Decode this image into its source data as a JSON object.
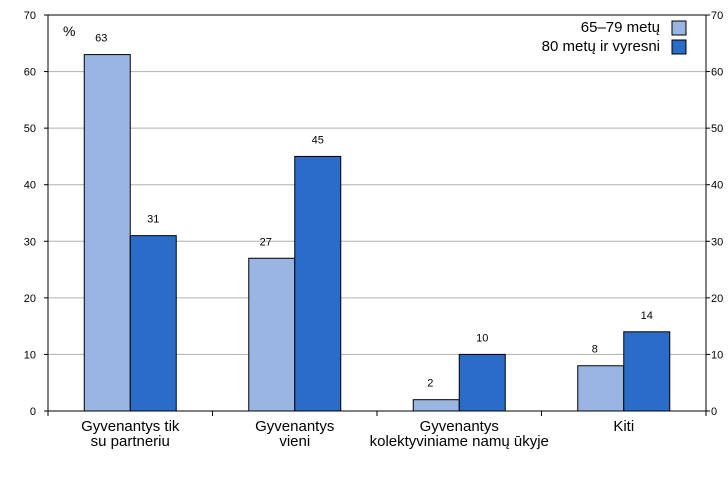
{
  "chart_data": {
    "type": "bar",
    "unit_label": "%",
    "ylim": [
      0,
      70
    ],
    "yticks": [
      "0",
      "10",
      "20",
      "30",
      "40",
      "50",
      "60",
      "70"
    ],
    "categories": [
      [
        "Gyvenantys tik",
        "su partneriu"
      ],
      [
        "Gyvenantys",
        "vieni"
      ],
      [
        "Gyvenantys",
        "kolektyviniame namų ūkyje"
      ],
      [
        "Kiti"
      ]
    ],
    "series": [
      {
        "name": "65–79 metų",
        "color": "#99b6e2",
        "values": [
          63,
          27,
          2,
          8
        ]
      },
      {
        "name": "80 metų ir vyresni",
        "color": "#2b6cc8",
        "values": [
          31,
          45,
          10,
          14
        ]
      }
    ],
    "grid": true,
    "legend_position": "top-right"
  }
}
